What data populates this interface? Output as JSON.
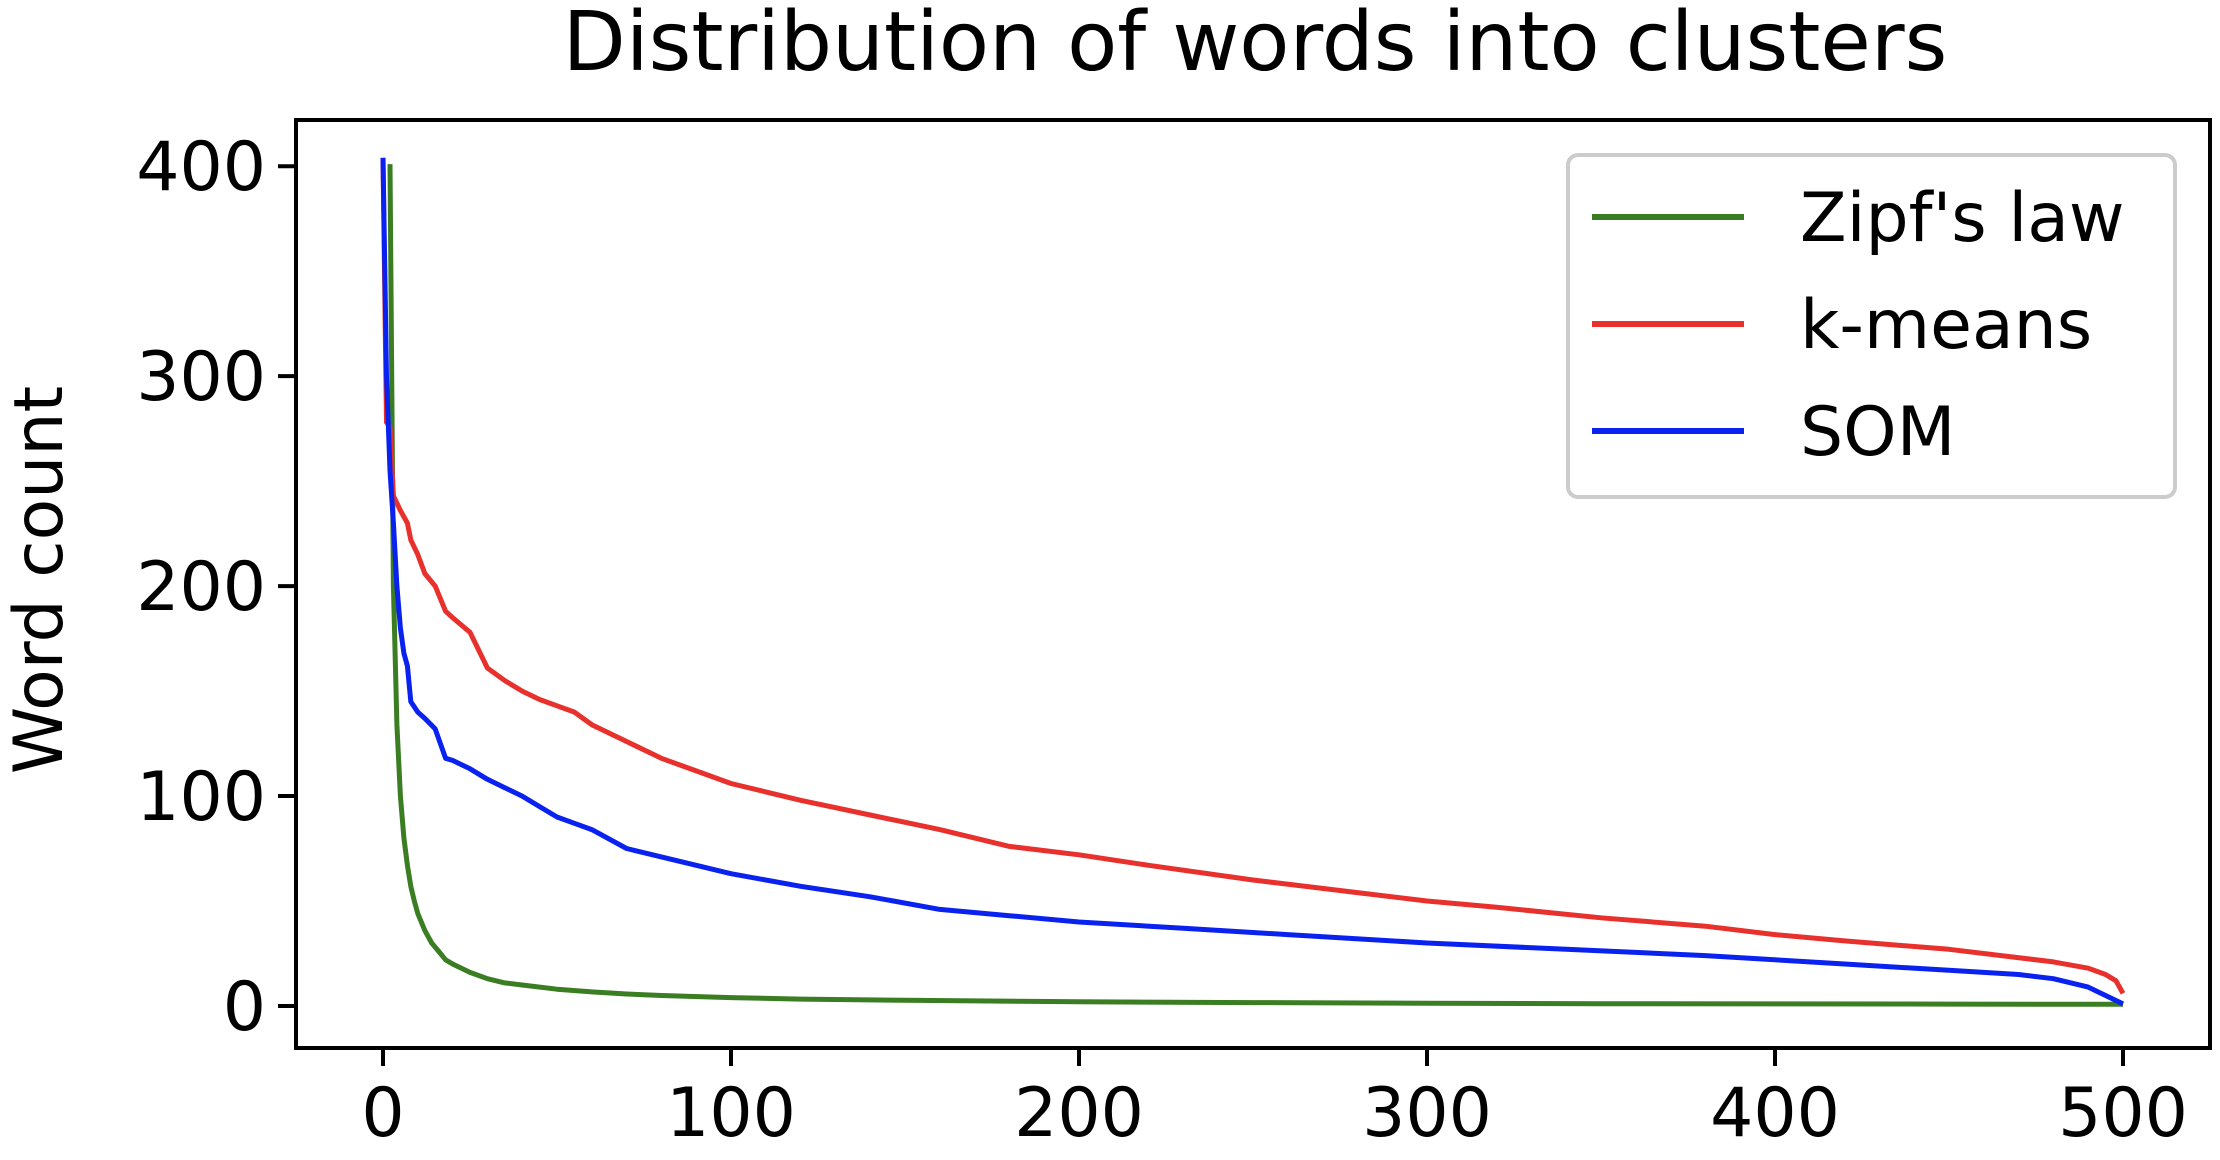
{
  "chart_data": {
    "type": "line",
    "title": "Distribution of words into clusters",
    "xlabel": "",
    "ylabel": "Word count",
    "xlim": [
      -25,
      525
    ],
    "ylim": [
      -20,
      422
    ],
    "x_ticks": [
      0,
      100,
      200,
      300,
      400,
      500
    ],
    "y_ticks": [
      0,
      100,
      200,
      300,
      400
    ],
    "grid": false,
    "legend_position": "top-right",
    "series": [
      {
        "name": "Zipf's law",
        "color": "#3a7d22",
        "x": [
          2,
          3,
          4,
          5,
          6,
          7,
          8,
          9,
          10,
          12,
          14,
          16,
          18,
          20,
          25,
          30,
          35,
          40,
          50,
          60,
          70,
          80,
          100,
          120,
          150,
          200,
          250,
          300,
          350,
          400,
          450,
          500
        ],
        "values": [
          401,
          200,
          134,
          100,
          80,
          67,
          57,
          50,
          44,
          36,
          30,
          26,
          22,
          20,
          16,
          13,
          11,
          10,
          8,
          6.7,
          5.7,
          5.0,
          4.0,
          3.3,
          2.7,
          2.0,
          1.6,
          1.3,
          1.1,
          1.0,
          0.9,
          0.8
        ]
      },
      {
        "name": "k-means",
        "color": "#e8302c",
        "x": [
          0,
          1,
          2,
          3,
          5,
          7,
          8,
          10,
          12,
          15,
          18,
          20,
          25,
          30,
          35,
          40,
          45,
          50,
          55,
          60,
          70,
          80,
          90,
          100,
          110,
          120,
          140,
          160,
          180,
          200,
          220,
          250,
          280,
          300,
          320,
          350,
          380,
          400,
          420,
          450,
          480,
          490,
          495,
          498,
          500
        ],
        "values": [
          404,
          278,
          276,
          243,
          236,
          230,
          222,
          215,
          206,
          200,
          188,
          185,
          178,
          161,
          155,
          150,
          146,
          143,
          140,
          134,
          126,
          118,
          112,
          106,
          102,
          98,
          91,
          84,
          76,
          72,
          67,
          60,
          54,
          50,
          47,
          42,
          38,
          34,
          31,
          27,
          21,
          18,
          15,
          12,
          6
        ]
      },
      {
        "name": "SOM",
        "color": "#0a22f0",
        "x": [
          0,
          1,
          2,
          3,
          4,
          5,
          6,
          7,
          8,
          10,
          12,
          15,
          18,
          20,
          25,
          30,
          35,
          40,
          45,
          50,
          55,
          60,
          70,
          80,
          90,
          100,
          120,
          140,
          160,
          180,
          200,
          230,
          260,
          300,
          340,
          380,
          420,
          450,
          470,
          480,
          490,
          495,
          500
        ],
        "values": [
          404,
          300,
          255,
          230,
          200,
          180,
          168,
          162,
          145,
          140,
          137,
          132,
          118,
          117,
          113,
          108,
          104,
          100,
          95,
          90,
          87,
          84,
          75,
          71,
          67,
          63,
          57,
          52,
          46,
          43,
          40,
          37,
          34,
          30,
          27,
          24,
          20,
          17,
          15,
          13,
          9,
          5,
          1
        ]
      }
    ]
  }
}
